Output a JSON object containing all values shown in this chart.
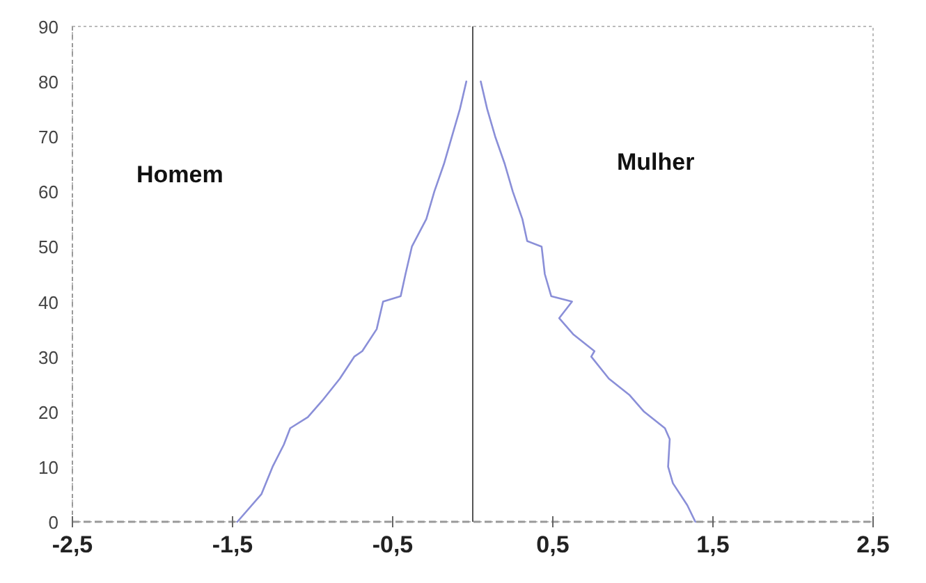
{
  "chart_data": {
    "type": "line",
    "series": [
      {
        "color": "#8a8fd8",
        "x": [
          -1.47,
          -1.32,
          -1.25,
          -1.18,
          -1.14,
          -1.03,
          -0.94,
          -0.83,
          -0.74,
          -0.69,
          -0.6,
          -0.56,
          -0.45,
          -0.42,
          -0.38,
          -0.29,
          -0.24,
          -0.18,
          -0.13,
          -0.08,
          -0.04
        ],
        "values": [
          0,
          5,
          10,
          14,
          17,
          19,
          22,
          26,
          30,
          31,
          35,
          40,
          41,
          45,
          50,
          55,
          60,
          65,
          70,
          75,
          80
        ]
      },
      {
        "color": "#8a8fd8",
        "x": [
          1.39,
          1.34,
          1.25,
          1.22,
          1.23,
          1.2,
          1.07,
          0.98,
          0.85,
          0.74,
          0.76,
          0.63,
          0.54,
          0.62,
          0.49,
          0.45,
          0.43,
          0.34,
          0.31,
          0.25,
          0.2,
          0.14,
          0.09,
          0.05
        ],
        "values": [
          0,
          3,
          7,
          10,
          15,
          17,
          20,
          23,
          26,
          30,
          31,
          34,
          37,
          40,
          41,
          45,
          50,
          51,
          55,
          60,
          65,
          70,
          75,
          80
        ]
      }
    ],
    "xlim": [
      -2.5,
      2.5
    ],
    "xticks": [
      {
        "value": -2.5,
        "label": "-2,5"
      },
      {
        "value": -1.5,
        "label": "-1,5"
      },
      {
        "value": -0.5,
        "label": "-0,5"
      },
      {
        "value": 0.5,
        "label": "0,5"
      },
      {
        "value": 1.5,
        "label": "1,5"
      },
      {
        "value": 2.5,
        "label": "2,5"
      }
    ],
    "ylim": [
      0,
      90
    ],
    "yticks": [
      0,
      10,
      20,
      30,
      40,
      50,
      60,
      70,
      80,
      90
    ],
    "annotations": [
      "Homem",
      "Mulher"
    ],
    "ref_lines": [
      {
        "axis": "x",
        "value": 0,
        "color": "#555555"
      }
    ],
    "grid": false,
    "legend": false,
    "marker": "none",
    "line_style": "solid"
  }
}
